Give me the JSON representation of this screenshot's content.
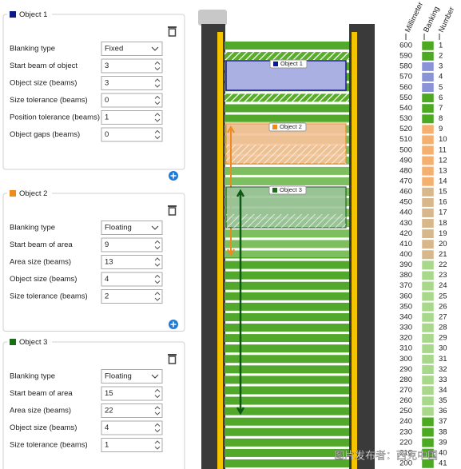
{
  "groups": [
    {
      "title": "Object 1",
      "color": "#0a1a8c",
      "fields": [
        {
          "label": "Blanking type",
          "value": "Fixed"
        },
        {
          "label": "Start beam of object",
          "value": 3
        },
        {
          "label": "Object size (beams)",
          "value": 3
        },
        {
          "label": "Size tolerance (beams)",
          "value": 0
        },
        {
          "label": "Position tolerance (beams)",
          "value": 1
        },
        {
          "label": "Object gaps (beams)",
          "value": 0
        }
      ]
    },
    {
      "title": "Object 2",
      "color": "#f08a1c",
      "fields": [
        {
          "label": "Blanking type",
          "value": "Floating"
        },
        {
          "label": "Start beam of area",
          "value": 9
        },
        {
          "label": "Area size (beams)",
          "value": 13
        },
        {
          "label": "Object size (beams)",
          "value": 4
        },
        {
          "label": "Size tolerance (beams)",
          "value": 2
        }
      ]
    },
    {
      "title": "Object 3",
      "color": "#1a6e1a",
      "fields": [
        {
          "label": "Blanking type",
          "value": "Floating"
        },
        {
          "label": "Start beam of area",
          "value": 15
        },
        {
          "label": "Area size (beams)",
          "value": 22
        },
        {
          "label": "Object size (beams)",
          "value": 4
        },
        {
          "label": "Size tolerance (beams)",
          "value": 1
        }
      ]
    }
  ],
  "scale": {
    "headers": [
      "Millimeter",
      "Banking",
      "Number"
    ],
    "millimeter": [
      600,
      590,
      580,
      570,
      560,
      550,
      540,
      530,
      520,
      510,
      500,
      490,
      480,
      470,
      460,
      450,
      440,
      430,
      420,
      410,
      400,
      390,
      380,
      370,
      360,
      350,
      340,
      330,
      320,
      310,
      300,
      290,
      280,
      270,
      260,
      250,
      240,
      230,
      220,
      210,
      200
    ],
    "number": [
      1,
      2,
      3,
      4,
      5,
      6,
      7,
      8,
      9,
      10,
      11,
      12,
      13,
      14,
      15,
      16,
      17,
      18,
      19,
      20,
      21,
      22,
      23,
      24,
      25,
      26,
      27,
      28,
      29,
      30,
      31,
      32,
      33,
      34,
      35,
      36,
      37,
      38,
      39,
      40,
      41
    ]
  },
  "watermark": "图片发布者：西克中国"
}
